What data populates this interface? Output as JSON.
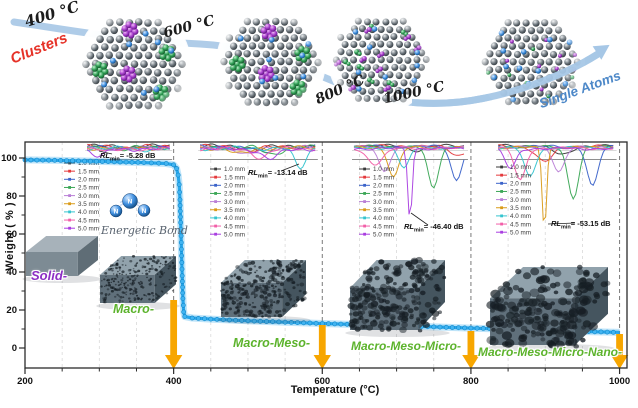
{
  "top": {
    "temps": [
      "400 °C",
      "600 °C",
      "800 °C",
      "1000 °C"
    ],
    "start_label": "Clusters",
    "end_label": "Single Atoms"
  },
  "annotations": {
    "energetic_bond": "Energetic Bond",
    "atom_label": "N"
  },
  "stages": [
    {
      "label": "Solid-",
      "color": "#8d2fc4"
    },
    {
      "label": "Macro-",
      "color": "#5cb32c"
    },
    {
      "label": "Macro-Meso-",
      "color": "#5cb32c"
    },
    {
      "label": "Macro-Meso-Micro-",
      "color": "#5cb32c"
    },
    {
      "label": "Macro-Meso-Micro-Nano-",
      "color": "#5cb32c"
    }
  ],
  "rl_labels": [
    {
      "prefix": "RL",
      "sub": "min",
      "value": "= -5.28 dB"
    },
    {
      "prefix": "RL",
      "sub": "min",
      "value": "= -13.14 dB"
    },
    {
      "prefix": "RL",
      "sub": "min",
      "value": "= -46.40 dB"
    },
    {
      "prefix": "RL",
      "sub": "min",
      "value": "= -53.15 dB"
    }
  ],
  "chart_data": {
    "type": "line",
    "title": "",
    "xlabel": "Temperature (°C)",
    "ylabel": "Weight ( % )",
    "xlim": [
      200,
      1010
    ],
    "ylim": [
      -10,
      108
    ],
    "x_ticks": [
      200,
      400,
      600,
      800,
      1000
    ],
    "x_minor_step": 50,
    "y_ticks": [
      0,
      20,
      40,
      60,
      80,
      100
    ],
    "grid": "vertical dashed gridlines every 50 °C",
    "tga_series": {
      "name": "Weight (%)",
      "color": "#27a6eb",
      "points": [
        [
          200,
          99
        ],
        [
          240,
          98.8
        ],
        [
          280,
          98.4
        ],
        [
          320,
          98.0
        ],
        [
          360,
          97.6
        ],
        [
          390,
          97.1
        ],
        [
          400,
          96.4
        ],
        [
          404,
          94.5
        ],
        [
          406,
          91
        ],
        [
          407.5,
          86
        ],
        [
          408.5,
          78
        ],
        [
          409.5,
          66
        ],
        [
          410.5,
          52
        ],
        [
          411.5,
          38
        ],
        [
          412.5,
          26
        ],
        [
          413.5,
          19
        ],
        [
          415,
          16.5
        ],
        [
          425,
          15.8
        ],
        [
          450,
          15.2
        ],
        [
          500,
          14.3
        ],
        [
          550,
          13.6
        ],
        [
          600,
          12.9
        ],
        [
          650,
          12.3
        ],
        [
          700,
          11.7
        ],
        [
          750,
          11.1
        ],
        [
          800,
          10.5
        ],
        [
          850,
          9.9
        ],
        [
          900,
          9.3
        ],
        [
          950,
          8.7
        ],
        [
          1000,
          8.2
        ]
      ]
    },
    "event_arrows_x_C": [
      400,
      600,
      800,
      1000
    ],
    "rl_series": [
      {
        "label": "1.0 mm",
        "color": "#3a3a3a"
      },
      {
        "label": "1.5 mm",
        "color": "#e4393c"
      },
      {
        "label": "2.0 mm",
        "color": "#3a62c9"
      },
      {
        "label": "2.5 mm",
        "color": "#3aa655"
      },
      {
        "label": "3.0 mm",
        "color": "#b97fd6"
      },
      {
        "label": "3.5 mm",
        "color": "#d99a17"
      },
      {
        "label": "4.0 mm",
        "color": "#35c4cf"
      },
      {
        "label": "4.5 mm",
        "color": "#f25fa8"
      },
      {
        "label": "5.0 mm",
        "color": "#a93ee0"
      }
    ],
    "insets": [
      {
        "rl_min_dB": -5.28,
        "x_range_C": [
          281,
          398
        ],
        "depths_dB": [
          0.8,
          1,
          1.2,
          1.5,
          1.8,
          1.2,
          1,
          2.2,
          5.28
        ],
        "dip_pos": [
          0.5,
          0.55,
          0.6,
          0.45,
          0.5,
          0.4,
          0.65,
          0.3,
          0.16
        ]
      },
      {
        "rl_min_dB": -13.14,
        "x_range_C": [
          433,
          594
        ],
        "depths_dB": [
          2,
          3,
          3.5,
          4.5,
          5,
          4,
          13.14,
          5.5,
          6.5
        ],
        "dip_pos": [
          0.5,
          0.45,
          0.55,
          0.62,
          0.4,
          0.35,
          0.85,
          0.52,
          0.6
        ]
      },
      {
        "rl_min_dB": -46.4,
        "x_range_C": [
          640,
          796
        ],
        "depths_dB": [
          3,
          6,
          22,
          27,
          16,
          19,
          13,
          10,
          46.4
        ],
        "dip_pos": [
          0.55,
          0.92,
          0.9,
          0.7,
          0.28,
          0.36,
          0.45,
          0.2,
          0.5
        ]
      },
      {
        "rl_min_dB": -53.15,
        "x_range_C": [
          834,
          996
        ],
        "depths_dB": [
          6,
          10,
          26,
          33,
          16,
          53.15,
          19,
          21,
          13
        ],
        "dip_pos": [
          0.55,
          0.4,
          0.8,
          0.64,
          0.52,
          0.4,
          0.28,
          0.2,
          0.12
        ]
      }
    ]
  }
}
